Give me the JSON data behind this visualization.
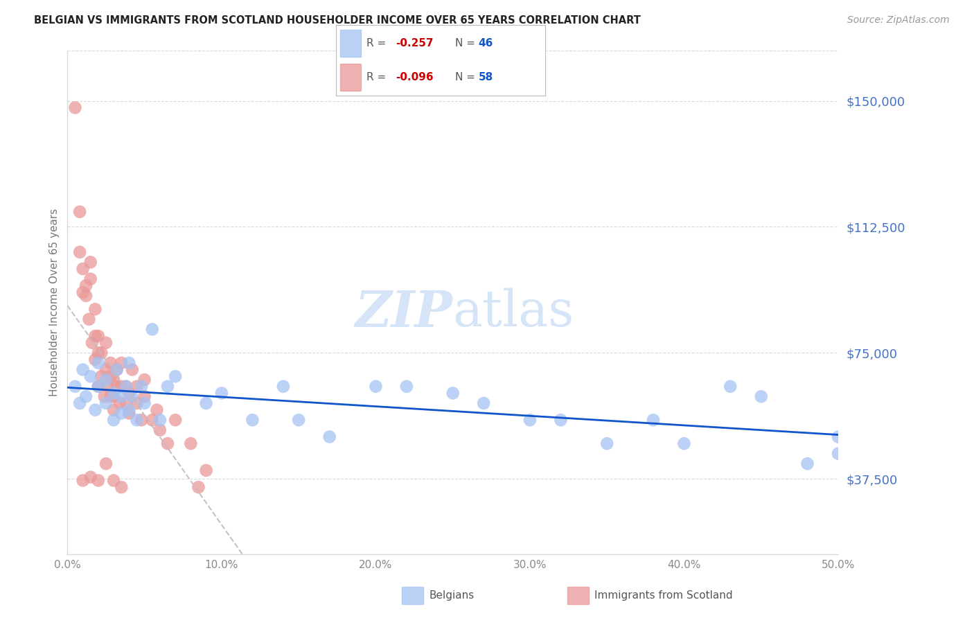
{
  "title": "BELGIAN VS IMMIGRANTS FROM SCOTLAND HOUSEHOLDER INCOME OVER 65 YEARS CORRELATION CHART",
  "source": "Source: ZipAtlas.com",
  "ylabel": "Householder Income Over 65 years",
  "xlabel_ticks": [
    "0.0%",
    "10.0%",
    "20.0%",
    "30.0%",
    "40.0%",
    "50.0%"
  ],
  "xlabel_vals": [
    0.0,
    0.1,
    0.2,
    0.3,
    0.4,
    0.5
  ],
  "ytick_labels": [
    "$37,500",
    "$75,000",
    "$112,500",
    "$150,000"
  ],
  "ytick_vals": [
    37500,
    75000,
    112500,
    150000
  ],
  "xlim": [
    0.0,
    0.5
  ],
  "ylim": [
    15000,
    165000
  ],
  "belgian_color": "#a4c2f4",
  "scotland_color": "#ea9999",
  "belgian_line_color": "#1155cc",
  "scotland_line_color": "#cccccc",
  "watermark_color": "#d6e4f7",
  "legend_R_color": "#cc0000",
  "legend_N_color": "#1155cc",
  "ytick_color": "#4472c4",
  "grid_color": "#d9d9d9",
  "belgians_x": [
    0.005,
    0.008,
    0.01,
    0.012,
    0.015,
    0.018,
    0.02,
    0.02,
    0.025,
    0.025,
    0.03,
    0.03,
    0.032,
    0.035,
    0.035,
    0.038,
    0.04,
    0.04,
    0.042,
    0.045,
    0.048,
    0.05,
    0.055,
    0.06,
    0.065,
    0.07,
    0.09,
    0.1,
    0.12,
    0.14,
    0.15,
    0.17,
    0.2,
    0.22,
    0.25,
    0.27,
    0.3,
    0.32,
    0.35,
    0.38,
    0.4,
    0.43,
    0.45,
    0.48,
    0.5,
    0.5
  ],
  "belgians_y": [
    65000,
    60000,
    70000,
    62000,
    68000,
    58000,
    65000,
    72000,
    60000,
    67000,
    63000,
    55000,
    70000,
    57000,
    62000,
    65000,
    58000,
    72000,
    62000,
    55000,
    65000,
    60000,
    82000,
    55000,
    65000,
    68000,
    60000,
    63000,
    55000,
    65000,
    55000,
    50000,
    65000,
    65000,
    63000,
    60000,
    55000,
    55000,
    48000,
    55000,
    48000,
    65000,
    62000,
    42000,
    50000,
    45000
  ],
  "scotland_x": [
    0.005,
    0.008,
    0.008,
    0.01,
    0.01,
    0.012,
    0.012,
    0.014,
    0.015,
    0.015,
    0.016,
    0.018,
    0.018,
    0.018,
    0.02,
    0.02,
    0.02,
    0.022,
    0.022,
    0.024,
    0.025,
    0.025,
    0.026,
    0.028,
    0.028,
    0.028,
    0.03,
    0.03,
    0.03,
    0.032,
    0.032,
    0.034,
    0.035,
    0.035,
    0.038,
    0.038,
    0.04,
    0.04,
    0.042,
    0.045,
    0.045,
    0.048,
    0.05,
    0.05,
    0.055,
    0.058,
    0.06,
    0.065,
    0.07,
    0.08,
    0.085,
    0.09,
    0.01,
    0.015,
    0.02,
    0.025,
    0.03,
    0.035
  ],
  "scotland_y": [
    148000,
    105000,
    117000,
    100000,
    93000,
    92000,
    95000,
    85000,
    102000,
    97000,
    78000,
    88000,
    73000,
    80000,
    75000,
    65000,
    80000,
    68000,
    75000,
    62000,
    70000,
    78000,
    65000,
    72000,
    62000,
    68000,
    62000,
    67000,
    58000,
    65000,
    70000,
    60000,
    65000,
    72000,
    60000,
    65000,
    57000,
    63000,
    70000,
    60000,
    65000,
    55000,
    62000,
    67000,
    55000,
    58000,
    52000,
    48000,
    55000,
    48000,
    35000,
    40000,
    37000,
    38000,
    37000,
    42000,
    37000,
    35000
  ]
}
